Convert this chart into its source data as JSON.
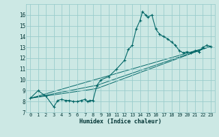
{
  "title": "",
  "xlabel": "Humidex (Indice chaleur)",
  "bg_color": "#cce8e4",
  "grid_color": "#99cccc",
  "line_color": "#006666",
  "xlim": [
    -0.5,
    23.5
  ],
  "ylim": [
    7,
    17
  ],
  "yticks": [
    7,
    8,
    9,
    10,
    11,
    12,
    13,
    14,
    15,
    16
  ],
  "xticks": [
    0,
    1,
    2,
    3,
    4,
    5,
    6,
    7,
    8,
    9,
    10,
    11,
    12,
    13,
    14,
    15,
    16,
    17,
    18,
    19,
    20,
    21,
    22,
    23
  ],
  "series": [
    [
      0,
      8.3
    ],
    [
      1,
      9.0
    ],
    [
      2,
      8.5
    ],
    [
      3,
      7.5
    ],
    [
      3.5,
      8.1
    ],
    [
      4,
      8.2
    ],
    [
      4.5,
      8.1
    ],
    [
      5,
      8.1
    ],
    [
      5.5,
      8.0
    ],
    [
      6,
      8.0
    ],
    [
      6.5,
      8.1
    ],
    [
      7,
      8.2
    ],
    [
      7.3,
      8.0
    ],
    [
      7.6,
      8.1
    ],
    [
      8,
      8.1
    ],
    [
      8.5,
      9.5
    ],
    [
      9,
      10.0
    ],
    [
      10,
      10.3
    ],
    [
      11,
      11.0
    ],
    [
      12,
      11.8
    ],
    [
      12.5,
      12.8
    ],
    [
      13,
      13.2
    ],
    [
      13.5,
      14.7
    ],
    [
      14,
      15.5
    ],
    [
      14.3,
      16.3
    ],
    [
      14.7,
      16.0
    ],
    [
      15,
      15.8
    ],
    [
      15.5,
      16.0
    ],
    [
      16,
      14.7
    ],
    [
      16.5,
      14.2
    ],
    [
      17,
      14.0
    ],
    [
      17.5,
      13.8
    ],
    [
      18,
      13.5
    ],
    [
      18.5,
      13.2
    ],
    [
      19,
      12.7
    ],
    [
      19.5,
      12.5
    ],
    [
      20,
      12.6
    ],
    [
      20.5,
      12.5
    ],
    [
      21,
      12.7
    ],
    [
      21.5,
      12.6
    ],
    [
      22,
      13.0
    ],
    [
      22.5,
      13.2
    ],
    [
      23,
      13.1
    ]
  ],
  "line2_x": [
    0,
    23
  ],
  "line2_y": [
    8.3,
    13.1
  ],
  "line3_x": [
    0,
    8.5,
    23
  ],
  "line3_y": [
    8.3,
    9.5,
    13.1
  ],
  "line4_x": [
    0,
    8.5,
    23
  ],
  "line4_y": [
    8.3,
    9.2,
    13.1
  ]
}
